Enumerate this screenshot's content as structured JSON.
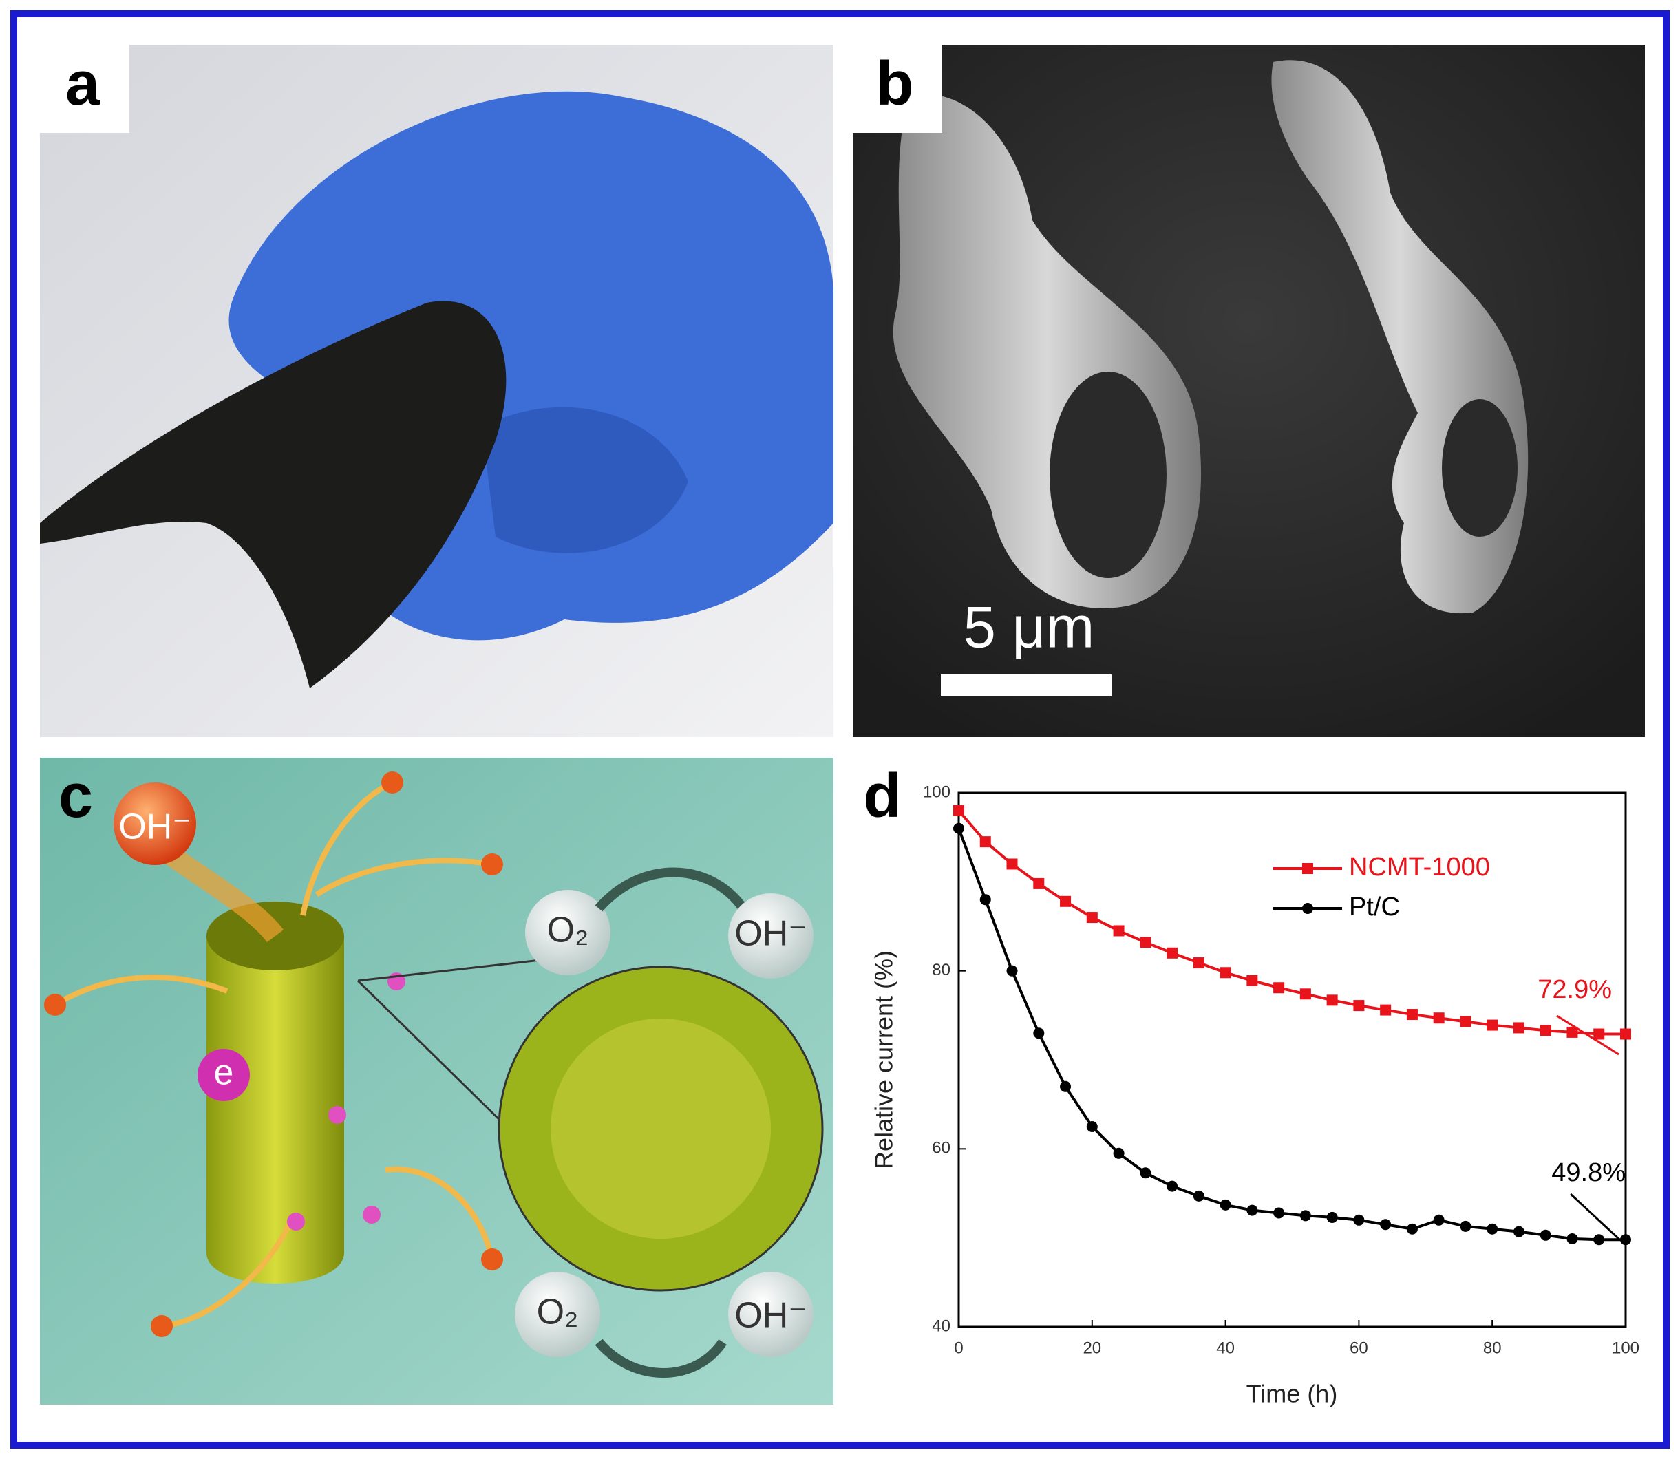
{
  "panels": {
    "a": {
      "label": "a"
    },
    "b": {
      "label": "b",
      "scale_bar": "5 μm"
    },
    "c": {
      "label": "c",
      "texts": [
        "OH⁻",
        "O₂",
        "OH⁻",
        "O₂",
        "OH⁻",
        "e"
      ]
    },
    "d": {
      "label": "d"
    }
  },
  "chart_data": {
    "type": "line",
    "x": [
      0,
      4,
      8,
      12,
      16,
      20,
      24,
      28,
      32,
      36,
      40,
      44,
      48,
      52,
      56,
      60,
      64,
      68,
      72,
      76,
      80,
      84,
      88,
      92,
      96,
      100
    ],
    "series": [
      {
        "name": "NCMT-1000",
        "color": "#e8141c",
        "marker": "square",
        "values": [
          98,
          94.5,
          92,
          89.8,
          87.8,
          86,
          84.5,
          83.2,
          82,
          80.9,
          79.8,
          78.9,
          78.1,
          77.4,
          76.7,
          76.1,
          75.6,
          75.1,
          74.7,
          74.3,
          73.9,
          73.6,
          73.3,
          73.1,
          72.9,
          72.9
        ]
      },
      {
        "name": "Pt/C",
        "color": "#000000",
        "marker": "circle",
        "values": [
          96,
          88,
          80,
          73,
          67,
          62.5,
          59.5,
          57.3,
          55.8,
          54.7,
          53.7,
          53.1,
          52.8,
          52.5,
          52.3,
          52,
          51.5,
          51,
          52,
          51.3,
          51,
          50.7,
          50.3,
          49.9,
          49.8,
          49.8
        ]
      }
    ],
    "annotations": [
      {
        "text": "72.9%",
        "color": "#e8141c"
      },
      {
        "text": "49.8%",
        "color": "#000000"
      }
    ],
    "xlabel": "Time (h)",
    "ylabel": "Relative current (%)",
    "xlim": [
      0,
      100
    ],
    "xticks": [
      0,
      20,
      40,
      60,
      80,
      100
    ],
    "ylim": [
      40,
      100
    ],
    "yticks": [
      40,
      60,
      80,
      100
    ],
    "legend": "upper-right"
  }
}
